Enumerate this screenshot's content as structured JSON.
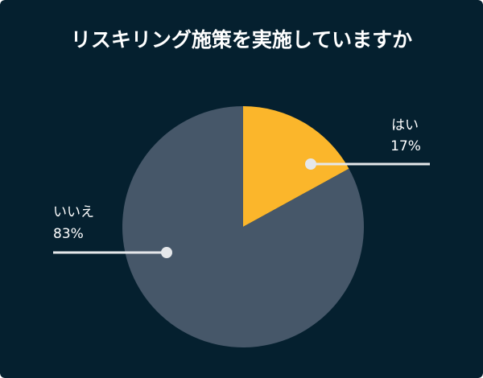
{
  "chart_data": {
    "type": "pie",
    "title": "リスキリング施策を実施していますか",
    "slices": [
      {
        "label": "はい",
        "value": 17,
        "value_label": "17%",
        "color": "#FBB62B"
      },
      {
        "label": "いいえ",
        "value": 83,
        "value_label": "83%",
        "color": "#465769"
      }
    ],
    "start_angle": "12 o'clock",
    "direction": "clockwise",
    "legend": "callout labels with leader lines"
  },
  "colors": {
    "background": "#05202F",
    "text": "#FFFFFF",
    "leader_line": "#E5E7EA"
  }
}
